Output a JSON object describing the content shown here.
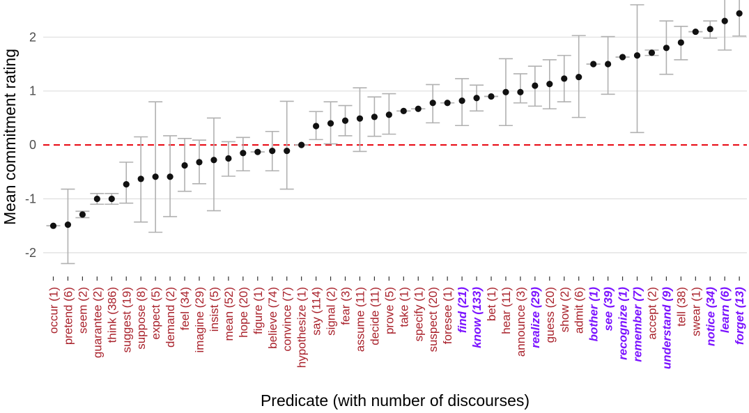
{
  "chart_data": {
    "type": "scatter",
    "title": "",
    "xlabel": "Predicate (with number of discourses)",
    "ylabel": "Mean commitment rating",
    "ylim": [
      -2.35,
      2.65
    ],
    "yticks": [
      -2,
      -1,
      0,
      1,
      2
    ],
    "ytick_labels": [
      "-2",
      "-1",
      "0",
      "1",
      "2"
    ],
    "reference_line": 0,
    "colors": {
      "nonfactive": "#a8202a",
      "factive": "#7b12ff",
      "reference": "#e8000b",
      "errorbar": "#b0b0b0",
      "point": "#111111"
    },
    "points": [
      {
        "label": "occur  (1)",
        "mean": -1.5,
        "lo": -1.5,
        "hi": -1.5,
        "factive": false
      },
      {
        "label": "pretend  (6)",
        "mean": -1.48,
        "lo": -2.2,
        "hi": -0.82,
        "factive": false
      },
      {
        "label": "seem  (2)",
        "mean": -1.29,
        "lo": -1.35,
        "hi": -1.23,
        "factive": false
      },
      {
        "label": "guarantee  (2)",
        "mean": -1.0,
        "lo": -1.1,
        "hi": -0.9,
        "factive": false
      },
      {
        "label": "think  (386)",
        "mean": -1.0,
        "lo": -1.1,
        "hi": -0.9,
        "factive": false
      },
      {
        "label": "suggest  (19)",
        "mean": -0.73,
        "lo": -1.08,
        "hi": -0.32,
        "factive": false
      },
      {
        "label": "suppose  (8)",
        "mean": -0.63,
        "lo": -1.43,
        "hi": 0.15,
        "factive": false
      },
      {
        "label": "expect  (5)",
        "mean": -0.59,
        "lo": -1.62,
        "hi": 0.8,
        "factive": false
      },
      {
        "label": "demand  (2)",
        "mean": -0.59,
        "lo": -1.33,
        "hi": 0.17,
        "factive": false
      },
      {
        "label": "feel  (34)",
        "mean": -0.38,
        "lo": -0.86,
        "hi": 0.12,
        "factive": false
      },
      {
        "label": "imagine  (29)",
        "mean": -0.32,
        "lo": -0.72,
        "hi": 0.09,
        "factive": false
      },
      {
        "label": "insist  (5)",
        "mean": -0.28,
        "lo": -1.22,
        "hi": 0.5,
        "factive": false
      },
      {
        "label": "mean  (52)",
        "mean": -0.25,
        "lo": -0.58,
        "hi": 0.06,
        "factive": false
      },
      {
        "label": "hope  (20)",
        "mean": -0.15,
        "lo": -0.48,
        "hi": 0.14,
        "factive": false
      },
      {
        "label": "figure  (1)",
        "mean": -0.13,
        "lo": -0.13,
        "hi": -0.13,
        "factive": false
      },
      {
        "label": "believe  (74)",
        "mean": -0.11,
        "lo": -0.48,
        "hi": 0.25,
        "factive": false
      },
      {
        "label": "convince  (7)",
        "mean": -0.11,
        "lo": -0.82,
        "hi": 0.81,
        "factive": false
      },
      {
        "label": "hypothesize  (1)",
        "mean": 0.0,
        "lo": 0.0,
        "hi": 0.0,
        "factive": false
      },
      {
        "label": "say  (114)",
        "mean": 0.35,
        "lo": 0.1,
        "hi": 0.62,
        "factive": false
      },
      {
        "label": "signal  (2)",
        "mean": 0.4,
        "lo": 0.02,
        "hi": 0.8,
        "factive": false
      },
      {
        "label": "fear  (3)",
        "mean": 0.45,
        "lo": 0.17,
        "hi": 0.73,
        "factive": false
      },
      {
        "label": "assume  (11)",
        "mean": 0.49,
        "lo": -0.12,
        "hi": 1.06,
        "factive": false
      },
      {
        "label": "decide  (11)",
        "mean": 0.52,
        "lo": 0.16,
        "hi": 0.89,
        "factive": false
      },
      {
        "label": "prove  (5)",
        "mean": 0.56,
        "lo": 0.2,
        "hi": 0.95,
        "factive": false
      },
      {
        "label": "take  (1)",
        "mean": 0.63,
        "lo": 0.63,
        "hi": 0.63,
        "factive": false
      },
      {
        "label": "specify  (1)",
        "mean": 0.67,
        "lo": 0.67,
        "hi": 0.67,
        "factive": false
      },
      {
        "label": "suspect  (20)",
        "mean": 0.78,
        "lo": 0.41,
        "hi": 1.12,
        "factive": false
      },
      {
        "label": "foresee  (1)",
        "mean": 0.78,
        "lo": 0.78,
        "hi": 0.78,
        "factive": false
      },
      {
        "label": "find  (21)",
        "mean": 0.82,
        "lo": 0.36,
        "hi": 1.23,
        "factive": true
      },
      {
        "label": "know  (133)",
        "mean": 0.87,
        "lo": 0.63,
        "hi": 1.11,
        "factive": true
      },
      {
        "label": "bet  (1)",
        "mean": 0.9,
        "lo": 0.9,
        "hi": 0.9,
        "factive": false
      },
      {
        "label": "hear  (11)",
        "mean": 0.98,
        "lo": 0.36,
        "hi": 1.6,
        "factive": false
      },
      {
        "label": "announce  (3)",
        "mean": 0.98,
        "lo": 0.78,
        "hi": 1.32,
        "factive": false
      },
      {
        "label": "realize  (29)",
        "mean": 1.1,
        "lo": 0.72,
        "hi": 1.46,
        "factive": true
      },
      {
        "label": "guess  (20)",
        "mean": 1.13,
        "lo": 0.67,
        "hi": 1.58,
        "factive": false
      },
      {
        "label": "show  (2)",
        "mean": 1.23,
        "lo": 0.8,
        "hi": 1.66,
        "factive": false
      },
      {
        "label": "admit  (6)",
        "mean": 1.26,
        "lo": 0.51,
        "hi": 2.03,
        "factive": false
      },
      {
        "label": "bother  (1)",
        "mean": 1.5,
        "lo": 1.5,
        "hi": 1.5,
        "factive": true
      },
      {
        "label": "see  (39)",
        "mean": 1.5,
        "lo": 0.94,
        "hi": 2.01,
        "factive": true
      },
      {
        "label": "recognize  (1)",
        "mean": 1.63,
        "lo": 1.63,
        "hi": 1.63,
        "factive": true
      },
      {
        "label": "remember  (7)",
        "mean": 1.66,
        "lo": 0.23,
        "hi": 2.6,
        "factive": true
      },
      {
        "label": "accept  (2)",
        "mean": 1.71,
        "lo": 1.66,
        "hi": 1.76,
        "factive": false
      },
      {
        "label": "understand  (9)",
        "mean": 1.8,
        "lo": 1.31,
        "hi": 2.3,
        "factive": true
      },
      {
        "label": "tell  (38)",
        "mean": 1.9,
        "lo": 1.58,
        "hi": 2.2,
        "factive": false
      },
      {
        "label": "swear  (1)",
        "mean": 2.1,
        "lo": 2.1,
        "hi": 2.1,
        "factive": false
      },
      {
        "label": "notice  (34)",
        "mean": 2.15,
        "lo": 1.98,
        "hi": 2.3,
        "factive": true
      },
      {
        "label": "learn  (6)",
        "mean": 2.3,
        "lo": 1.76,
        "hi": 2.75,
        "factive": true
      },
      {
        "label": "forget  (13)",
        "mean": 2.44,
        "lo": 2.02,
        "hi": 2.73,
        "factive": true
      }
    ]
  }
}
